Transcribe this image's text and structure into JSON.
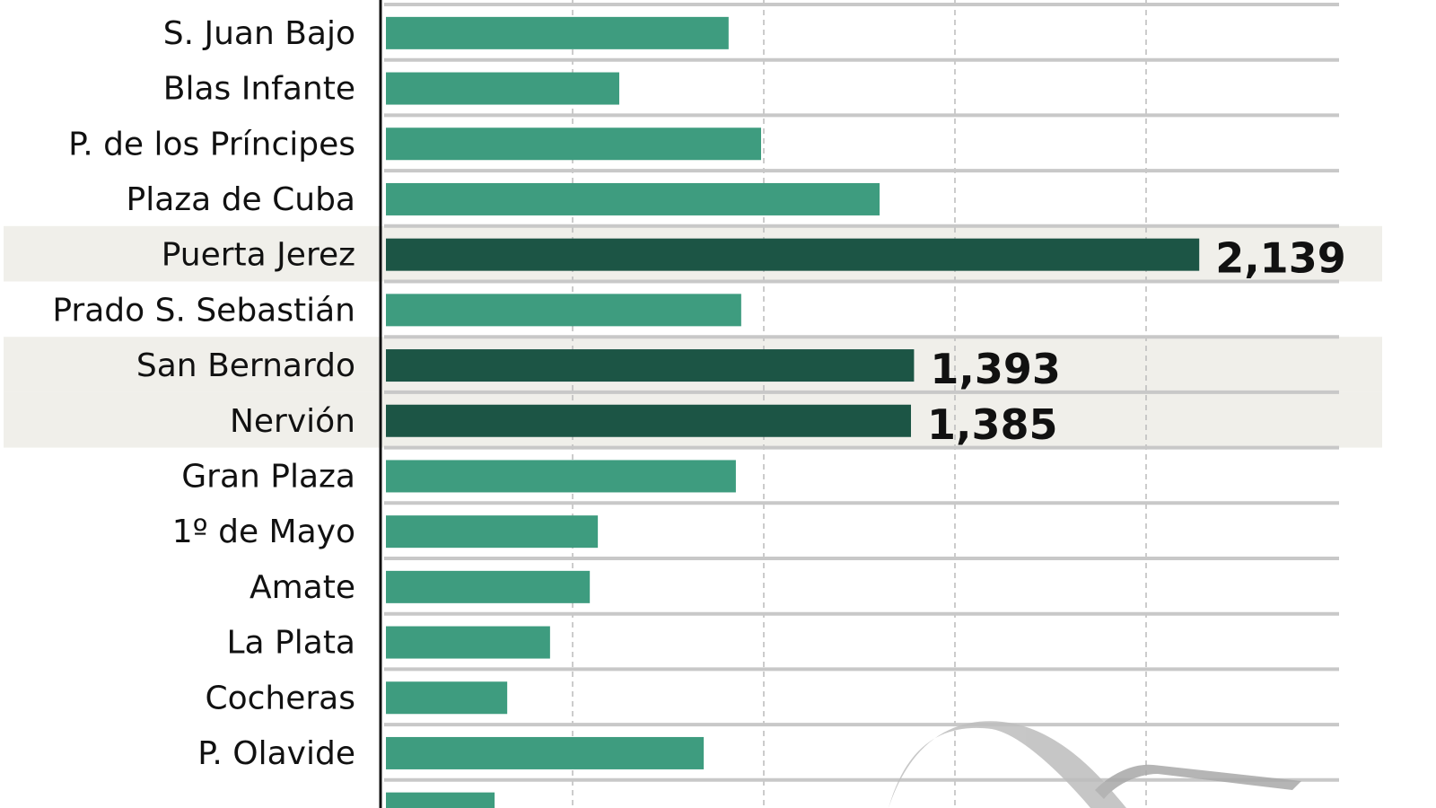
{
  "chart_data": {
    "type": "bar",
    "orientation": "horizontal",
    "title": "",
    "xlabel": "",
    "ylabel": "",
    "xlim": [
      0,
      2500
    ],
    "grid": true,
    "grid_step": 500,
    "colors": {
      "default": "#3e9c7f",
      "highlight": "#1c5545",
      "highlight_row_bg": "#f0efea",
      "separator": "#c8c8c8"
    },
    "categories": [
      "S. Juan Bajo",
      "Blas Infante",
      "P. de los Príncipes",
      "Plaza de Cuba",
      "Puerta Jerez",
      "Prado S. Sebastián",
      "San Bernardo",
      "Nervión",
      "Gran Plaza",
      "1º de Mayo",
      "Amate",
      "La Plata",
      "Cocheras",
      "P. Olavide",
      ""
    ],
    "values": [
      908,
      622,
      993,
      1303,
      2139,
      941,
      1393,
      1385,
      927,
      566,
      545,
      441,
      329,
      843,
      296
    ],
    "highlighted": [
      false,
      false,
      false,
      false,
      true,
      false,
      true,
      true,
      false,
      false,
      false,
      false,
      false,
      false,
      false
    ],
    "data_labels": [
      "",
      "",
      "",
      "",
      "2,139",
      "",
      "1,393",
      "1,385",
      "",
      "",
      "",
      "",
      "",
      "",
      ""
    ]
  }
}
